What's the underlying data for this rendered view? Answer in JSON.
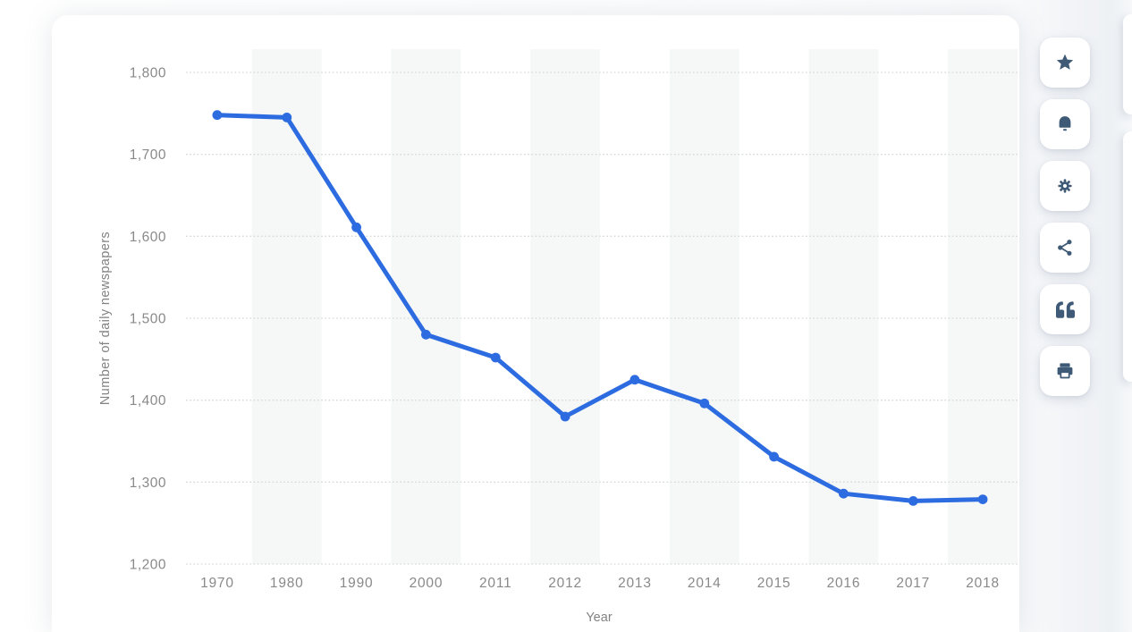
{
  "chart_data": {
    "type": "line",
    "x": [
      "1970",
      "1980",
      "1990",
      "2000",
      "2011",
      "2012",
      "2013",
      "2014",
      "2015",
      "2016",
      "2017",
      "2018"
    ],
    "series": [
      {
        "name": "Number of daily newspapers",
        "values": [
          1748,
          1745,
          1611,
          1480,
          1452,
          1380,
          1425,
          1396,
          1331,
          1286,
          1277,
          1279
        ]
      }
    ],
    "title": "",
    "xlabel": "Year",
    "ylabel": "Number of daily newspapers",
    "ylim": [
      1200,
      1800
    ],
    "ytick_step": 100,
    "ytick_labels": [
      "1,200",
      "1,300",
      "1,400",
      "1,500",
      "1,600",
      "1,700",
      "1,800"
    ],
    "grid": "horizontal-dotted",
    "legend": "none",
    "column_bands": "alternate shaded columns starting with second category",
    "colors": {
      "line": "#2d6ce0",
      "point": "#2d6ce0",
      "gridline": "#d7d7d7",
      "band": "#f6f7f7",
      "tick_text": "#898989",
      "axis_title_text": "#828282",
      "plot_background": "#ffffff"
    }
  },
  "toolbar": {
    "icon_color": "#3e5a77",
    "buttons": [
      {
        "name": "favorite-button",
        "icon": "star-icon"
      },
      {
        "name": "alert-button",
        "icon": "bell-icon"
      },
      {
        "name": "settings-button",
        "icon": "gear-icon"
      },
      {
        "name": "share-button",
        "icon": "share-icon"
      },
      {
        "name": "cite-button",
        "icon": "quote-icon"
      },
      {
        "name": "print-button",
        "icon": "print-icon"
      }
    ]
  }
}
